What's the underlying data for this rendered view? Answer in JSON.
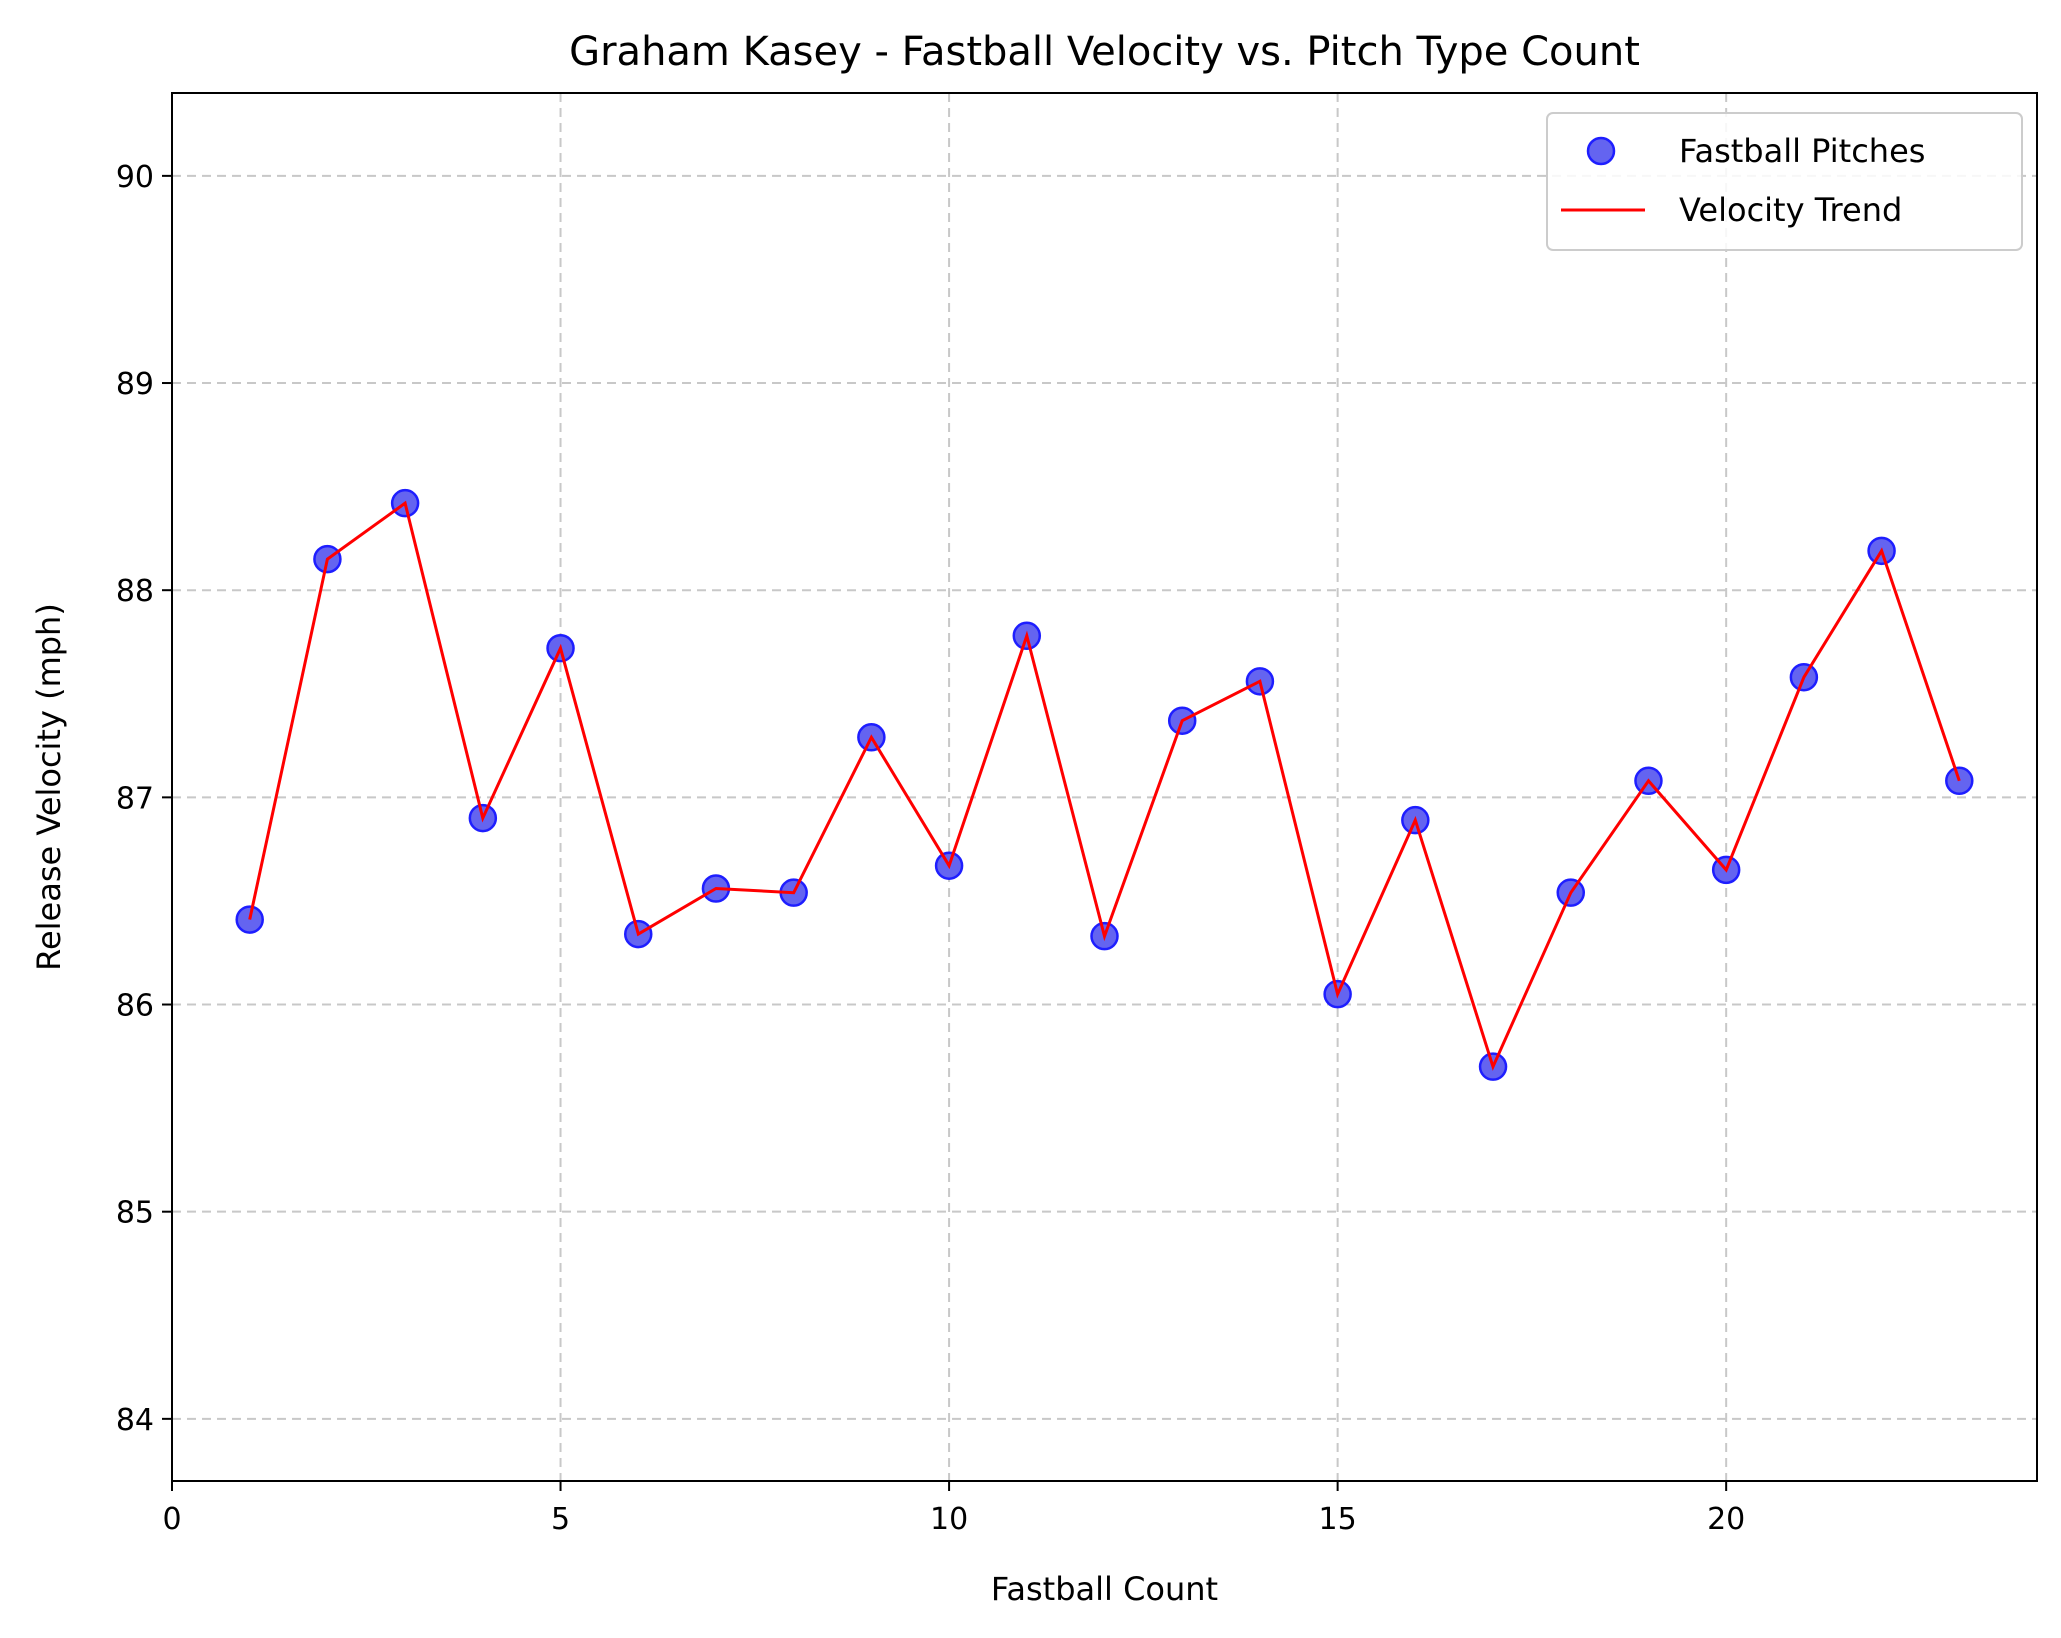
{
  "chart_data": {
    "type": "scatter",
    "title": "Graham Kasey - Fastball Velocity vs. Pitch Type Count",
    "xlabel": "Fastball Count",
    "ylabel": "Release Velocity (mph)",
    "xlim": [
      0,
      24
    ],
    "ylim": [
      83.7,
      90.4
    ],
    "xticks": [
      0,
      5,
      10,
      15,
      20
    ],
    "yticks": [
      84,
      85,
      86,
      87,
      88,
      89,
      90
    ],
    "grid": true,
    "legend_position": "top-right",
    "series": [
      {
        "name": "Fastball Pitches",
        "kind": "scatter",
        "color": "#6464f0",
        "edge_color": "#1e1eff",
        "x": [
          1,
          2,
          3,
          4,
          5,
          6,
          7,
          8,
          9,
          10,
          11,
          12,
          13,
          14,
          15,
          16,
          17,
          18,
          19,
          20,
          21,
          22,
          23
        ],
        "y": [
          86.41,
          88.15,
          88.42,
          86.9,
          87.72,
          86.34,
          86.56,
          86.54,
          87.29,
          86.67,
          87.78,
          86.33,
          87.37,
          87.56,
          86.05,
          86.89,
          85.7,
          86.54,
          87.08,
          86.65,
          87.58,
          88.19,
          87.08
        ]
      },
      {
        "name": "Velocity Trend",
        "kind": "line",
        "color": "#ff0000",
        "x": [
          1,
          2,
          3,
          4,
          5,
          6,
          7,
          8,
          9,
          10,
          11,
          12,
          13,
          14,
          15,
          16,
          17,
          18,
          19,
          20,
          21,
          22,
          23
        ],
        "y": [
          86.41,
          88.15,
          88.42,
          86.9,
          87.72,
          86.34,
          86.56,
          86.54,
          87.29,
          86.67,
          87.78,
          86.33,
          87.37,
          87.56,
          86.05,
          86.89,
          85.7,
          86.54,
          87.08,
          86.65,
          87.58,
          88.19,
          87.08
        ]
      }
    ]
  }
}
